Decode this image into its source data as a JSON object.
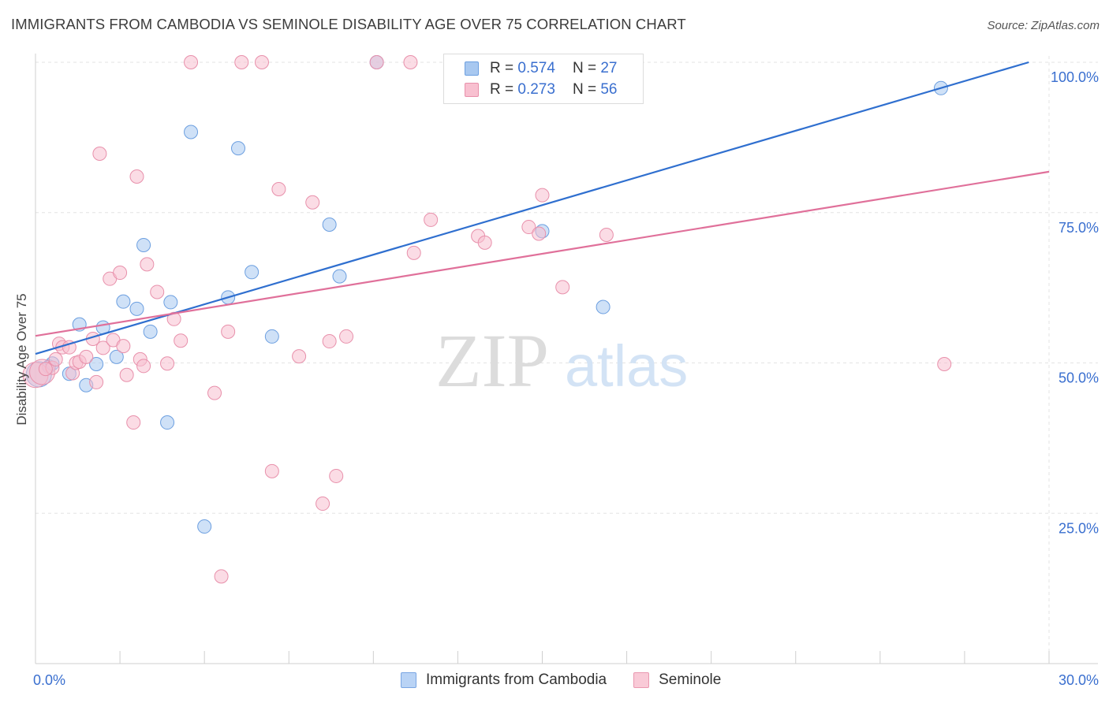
{
  "title": "IMMIGRANTS FROM CAMBODIA VS SEMINOLE DISABILITY AGE OVER 75 CORRELATION CHART",
  "source": "Source: ZipAtlas.com",
  "watermark": {
    "zip": "ZIP",
    "atlas": "atlas"
  },
  "legend": {
    "r_label": "R =",
    "n_label": "N =",
    "rows": [
      {
        "r": "0.574",
        "n": "27",
        "color": "#a8c8f0",
        "border": "#6c9fe0"
      },
      {
        "r": "0.273",
        "n": "56",
        "color": "#f8c0d0",
        "border": "#e890ab"
      }
    ]
  },
  "bottom_legend": [
    {
      "label": "Immigrants from Cambodia",
      "color": "#b9d3f5",
      "border": "#7aa6e3"
    },
    {
      "label": "Seminole",
      "color": "#f9cad7",
      "border": "#ea98b0"
    }
  ],
  "chart_data": {
    "type": "scatter",
    "title": "IMMIGRANTS FROM CAMBODIA VS SEMINOLE DISABILITY AGE OVER 75 CORRELATION CHART",
    "xlabel": "",
    "ylabel": "Disability Age Over 75",
    "xlim": [
      0,
      30
    ],
    "ylim": [
      0,
      100
    ],
    "x_tick_labels": [
      "0.0%",
      "30.0%"
    ],
    "y_tick_labels": [
      "25.0%",
      "50.0%",
      "75.0%",
      "100.0%"
    ],
    "y_ticks": [
      25,
      50,
      75,
      100
    ],
    "grid": true,
    "legend_position": "top-center",
    "series": [
      {
        "name": "Immigrants from Cambodia",
        "color": "#6c9fe0",
        "fill": "#a8c8f0",
        "line_color": "#2f6fcf",
        "trend": {
          "x": [
            0,
            29.4
          ],
          "y": [
            51.5,
            100
          ]
        },
        "points": [
          [
            0.1,
            48.1
          ],
          [
            0.4,
            49.4
          ],
          [
            1.0,
            48.2
          ],
          [
            1.3,
            56.4
          ],
          [
            1.5,
            46.3
          ],
          [
            1.8,
            49.8
          ],
          [
            2.0,
            55.9
          ],
          [
            2.4,
            51.0
          ],
          [
            2.6,
            60.2
          ],
          [
            3.0,
            59.0
          ],
          [
            3.2,
            69.6
          ],
          [
            3.4,
            55.2
          ],
          [
            3.9,
            40.1
          ],
          [
            4.0,
            60.1
          ],
          [
            4.6,
            88.4
          ],
          [
            5.0,
            22.8
          ],
          [
            5.7,
            60.9
          ],
          [
            6.0,
            85.7
          ],
          [
            6.4,
            65.1
          ],
          [
            7.0,
            54.4
          ],
          [
            8.7,
            73.0
          ],
          [
            9.0,
            64.4
          ],
          [
            10.1,
            100.0
          ],
          [
            15.0,
            71.9
          ],
          [
            16.8,
            59.3
          ],
          [
            26.8,
            95.7
          ],
          [
            0.5,
            49.9
          ]
        ]
      },
      {
        "name": "Seminole",
        "color": "#e890ab",
        "fill": "#f8c0d0",
        "line_color": "#e0709a",
        "trend": {
          "x": [
            0,
            30
          ],
          "y": [
            54.5,
            81.8
          ]
        },
        "points": [
          [
            0.0,
            48.0
          ],
          [
            0.2,
            48.5
          ],
          [
            0.5,
            49.2
          ],
          [
            0.6,
            50.6
          ],
          [
            0.7,
            53.2
          ],
          [
            0.8,
            52.6
          ],
          [
            1.0,
            52.6
          ],
          [
            1.1,
            48.3
          ],
          [
            1.2,
            50.0
          ],
          [
            1.3,
            50.2
          ],
          [
            1.5,
            51.0
          ],
          [
            1.7,
            54.0
          ],
          [
            1.8,
            46.8
          ],
          [
            1.9,
            84.8
          ],
          [
            2.0,
            52.5
          ],
          [
            2.2,
            64.0
          ],
          [
            2.3,
            53.8
          ],
          [
            2.5,
            65.0
          ],
          [
            2.6,
            52.8
          ],
          [
            2.7,
            48.0
          ],
          [
            2.9,
            40.1
          ],
          [
            3.0,
            81.0
          ],
          [
            3.1,
            50.6
          ],
          [
            3.2,
            49.5
          ],
          [
            3.3,
            66.4
          ],
          [
            3.6,
            61.8
          ],
          [
            3.9,
            49.9
          ],
          [
            4.1,
            57.3
          ],
          [
            4.3,
            53.7
          ],
          [
            4.6,
            100.0
          ],
          [
            5.3,
            45.0
          ],
          [
            5.5,
            14.5
          ],
          [
            5.7,
            55.2
          ],
          [
            6.1,
            100.0
          ],
          [
            6.7,
            100.0
          ],
          [
            7.0,
            32.0
          ],
          [
            7.2,
            78.9
          ],
          [
            7.8,
            51.1
          ],
          [
            8.2,
            76.7
          ],
          [
            8.5,
            26.6
          ],
          [
            8.7,
            53.6
          ],
          [
            8.9,
            31.2
          ],
          [
            9.2,
            54.4
          ],
          [
            10.1,
            100.0
          ],
          [
            11.1,
            100.0
          ],
          [
            11.2,
            68.3
          ],
          [
            11.7,
            73.8
          ],
          [
            13.1,
            71.1
          ],
          [
            13.3,
            70.0
          ],
          [
            14.6,
            72.6
          ],
          [
            14.9,
            71.5
          ],
          [
            15.0,
            77.9
          ],
          [
            15.6,
            62.6
          ],
          [
            16.9,
            71.3
          ],
          [
            26.9,
            49.8
          ],
          [
            0.3,
            49.0
          ]
        ]
      }
    ]
  }
}
